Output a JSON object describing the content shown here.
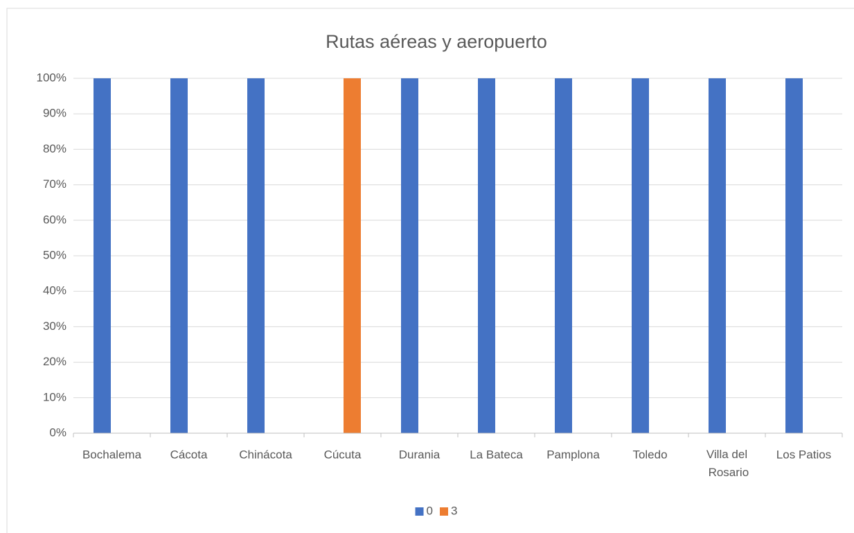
{
  "chart_data": {
    "type": "bar",
    "title": "Rutas aéreas y aeropuerto",
    "categories": [
      "Bochalema",
      "Cácota",
      "Chinácota",
      "Cúcuta",
      "Durania",
      "La Bateca",
      "Pamplona",
      "Toledo",
      "Villa del Rosario",
      "Los Patios"
    ],
    "series": [
      {
        "name": "0",
        "color": "#4472c4",
        "values": [
          100,
          100,
          100,
          0,
          100,
          100,
          100,
          100,
          100,
          100
        ]
      },
      {
        "name": "3",
        "color": "#ed7d31",
        "values": [
          0,
          0,
          0,
          100,
          0,
          0,
          0,
          0,
          0,
          0
        ]
      }
    ],
    "ylim": [
      0,
      100
    ],
    "yticks": [
      {
        "value": 0,
        "label": "0%"
      },
      {
        "value": 10,
        "label": "10%"
      },
      {
        "value": 20,
        "label": "20%"
      },
      {
        "value": 30,
        "label": "30%"
      },
      {
        "value": 40,
        "label": "40%"
      },
      {
        "value": 50,
        "label": "50%"
      },
      {
        "value": 60,
        "label": "60%"
      },
      {
        "value": 70,
        "label": "70%"
      },
      {
        "value": 80,
        "label": "80%"
      },
      {
        "value": 90,
        "label": "90%"
      },
      {
        "value": 100,
        "label": "100%"
      }
    ],
    "grid": true,
    "legend": "bottom"
  }
}
